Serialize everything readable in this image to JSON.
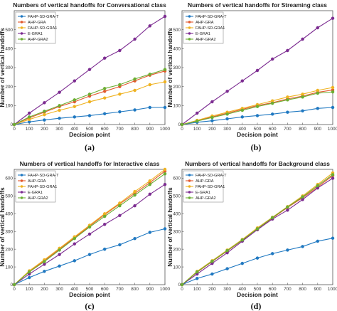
{
  "figure": {
    "panel_labels": [
      "(a)",
      "(b)",
      "(c)",
      "(d)"
    ]
  },
  "legend_labels": [
    "FAHP-SD-GRA-T",
    "AHP-GRA",
    "FAHP-SD-GRA1",
    "E-GRA1",
    "AHP-GRA2"
  ],
  "colors": {
    "FAHP-SD-GRA-T": "#1f78c1",
    "AHP-GRA": "#e2582c",
    "FAHP-SD-GRA1": "#efb220",
    "E-GRA1": "#7c2c91",
    "AHP-GRA2": "#6bae32"
  },
  "chart_data": [
    {
      "type": "line",
      "title": "Numbers of vertical handoffs for Conversational class",
      "xlabel": "Decision point",
      "ylabel": "Number of vertical handoffs",
      "xlim": [
        0,
        1000
      ],
      "ylim": [
        0,
        600
      ],
      "xticks": [
        0,
        100,
        200,
        300,
        400,
        500,
        600,
        700,
        800,
        900,
        1000
      ],
      "yticks": [
        0,
        100,
        200,
        300,
        400,
        500
      ],
      "x": [
        0,
        100,
        200,
        300,
        400,
        500,
        600,
        700,
        800,
        900,
        1000
      ],
      "legend_position": "top-left",
      "grid": false,
      "series": [
        {
          "name": "FAHP-SD-GRA-T",
          "values": [
            0,
            14,
            24,
            33,
            40,
            47,
            57,
            67,
            77,
            90,
            90
          ]
        },
        {
          "name": "AHP-GRA",
          "values": [
            0,
            35,
            65,
            95,
            120,
            150,
            175,
            200,
            230,
            260,
            282
          ]
        },
        {
          "name": "FAHP-SD-GRA1",
          "values": [
            0,
            27,
            52,
            75,
            95,
            120,
            140,
            160,
            180,
            210,
            225
          ]
        },
        {
          "name": "E-GRA1",
          "values": [
            0,
            60,
            115,
            170,
            230,
            290,
            350,
            390,
            450,
            520,
            570
          ]
        },
        {
          "name": "AHP-GRA2",
          "values": [
            0,
            40,
            70,
            100,
            130,
            160,
            190,
            210,
            240,
            265,
            290
          ]
        }
      ]
    },
    {
      "type": "line",
      "title": "Numbers of vertical handoffs for Streaming class",
      "xlabel": "Decision point",
      "ylabel": "Number of vertical handoffs",
      "xlim": [
        0,
        1000
      ],
      "ylim": [
        0,
        600
      ],
      "xticks": [
        0,
        100,
        200,
        300,
        400,
        500,
        600,
        700,
        800,
        900,
        1000
      ],
      "yticks": [
        0,
        100,
        200,
        300,
        400,
        500
      ],
      "x": [
        0,
        100,
        200,
        300,
        400,
        500,
        600,
        700,
        800,
        900,
        1000
      ],
      "legend_position": "top-left",
      "grid": false,
      "series": [
        {
          "name": "FAHP-SD-GRA-T",
          "values": [
            0,
            12,
            20,
            30,
            40,
            47,
            55,
            65,
            72,
            85,
            90
          ]
        },
        {
          "name": "AHP-GRA",
          "values": [
            0,
            20,
            40,
            60,
            80,
            100,
            115,
            135,
            150,
            170,
            182
          ]
        },
        {
          "name": "FAHP-SD-GRA1",
          "values": [
            0,
            22,
            45,
            65,
            85,
            105,
            125,
            145,
            160,
            180,
            195
          ]
        },
        {
          "name": "E-GRA1",
          "values": [
            0,
            60,
            120,
            175,
            230,
            285,
            345,
            390,
            450,
            510,
            560
          ]
        },
        {
          "name": "AHP-GRA2",
          "values": [
            0,
            18,
            37,
            55,
            75,
            95,
            112,
            130,
            145,
            165,
            172
          ]
        }
      ]
    },
    {
      "type": "line",
      "title": "Numbers of vertical handoffs for Interactive class",
      "xlabel": "Decision point",
      "ylabel": "Number of vertical handoffs",
      "xlim": [
        0,
        1000
      ],
      "ylim": [
        0,
        650
      ],
      "xticks": [
        0,
        100,
        200,
        300,
        400,
        500,
        600,
        700,
        800,
        900,
        1000
      ],
      "yticks": [
        0,
        100,
        200,
        300,
        400,
        500,
        600
      ],
      "x": [
        0,
        100,
        200,
        300,
        400,
        500,
        600,
        700,
        800,
        900,
        1000
      ],
      "legend_position": "top-left",
      "grid": false,
      "series": [
        {
          "name": "FAHP-SD-GRA-T",
          "values": [
            0,
            40,
            75,
            105,
            135,
            170,
            200,
            225,
            260,
            295,
            315
          ]
        },
        {
          "name": "AHP-GRA",
          "values": [
            0,
            75,
            135,
            200,
            265,
            330,
            395,
            455,
            515,
            575,
            640
          ]
        },
        {
          "name": "FAHP-SD-GRA1",
          "values": [
            0,
            78,
            140,
            205,
            270,
            335,
            400,
            460,
            525,
            585,
            650
          ]
        },
        {
          "name": "E-GRA1",
          "values": [
            0,
            60,
            115,
            170,
            230,
            285,
            340,
            390,
            445,
            510,
            565
          ]
        },
        {
          "name": "AHP-GRA2",
          "values": [
            0,
            72,
            130,
            195,
            260,
            325,
            385,
            445,
            505,
            565,
            625
          ]
        }
      ]
    },
    {
      "type": "line",
      "title": "Numbers of vertical handoffs for Background class",
      "xlabel": "Decision point",
      "ylabel": "Number of vertical handoffs",
      "xlim": [
        0,
        1000
      ],
      "ylim": [
        0,
        650
      ],
      "xticks": [
        0,
        100,
        200,
        300,
        400,
        500,
        600,
        700,
        800,
        900,
        1000
      ],
      "yticks": [
        0,
        100,
        200,
        300,
        400,
        500,
        600
      ],
      "x": [
        0,
        100,
        200,
        300,
        400,
        500,
        600,
        700,
        800,
        900,
        1000
      ],
      "legend_position": "top-left",
      "grid": false,
      "series": [
        {
          "name": "FAHP-SD-GRA-T",
          "values": [
            0,
            35,
            60,
            90,
            120,
            150,
            175,
            195,
            215,
            245,
            262
          ]
        },
        {
          "name": "AHP-GRA",
          "values": [
            0,
            70,
            130,
            190,
            250,
            310,
            375,
            435,
            490,
            550,
            615
          ]
        },
        {
          "name": "FAHP-SD-GRA1",
          "values": [
            0,
            75,
            135,
            195,
            255,
            320,
            380,
            440,
            500,
            565,
            630
          ]
        },
        {
          "name": "E-GRA1",
          "values": [
            0,
            60,
            120,
            180,
            245,
            310,
            370,
            420,
            480,
            545,
            600
          ]
        },
        {
          "name": "AHP-GRA2",
          "values": [
            0,
            72,
            132,
            192,
            252,
            315,
            378,
            438,
            495,
            558,
            620
          ]
        }
      ]
    }
  ]
}
